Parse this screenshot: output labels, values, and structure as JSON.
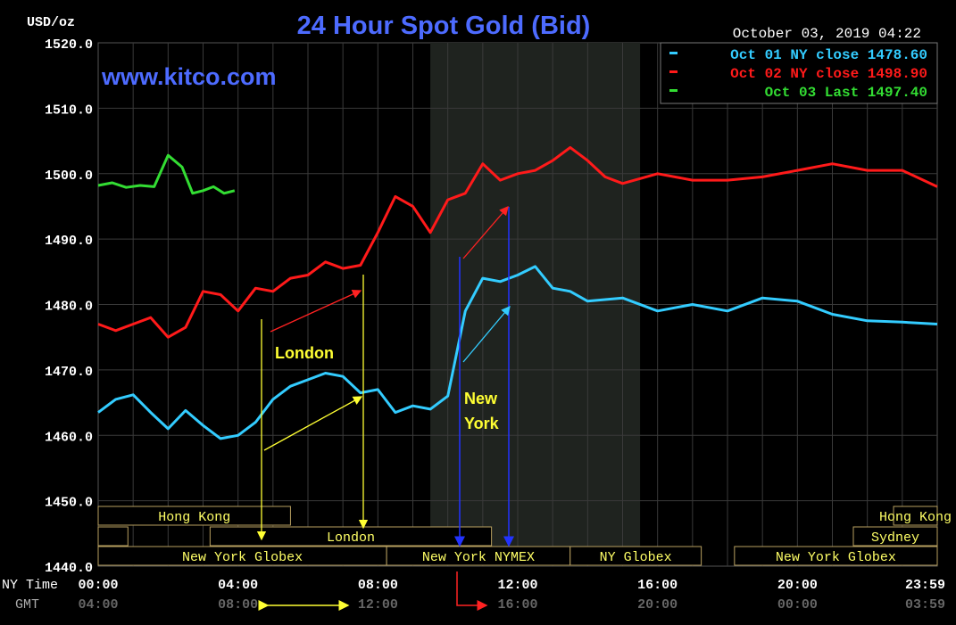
{
  "chart_data": {
    "type": "line",
    "title": "24 Hour Spot Gold (Bid)",
    "ylabel": "USD/oz",
    "watermark": "www.kitco.com",
    "timestamp": "October 03, 2019 04:22",
    "ylim": [
      1440,
      1520
    ],
    "yticks": [
      "1520.0",
      "1510.0",
      "1500.0",
      "1490.0",
      "1480.0",
      "1470.0",
      "1460.0",
      "1450.0",
      "1440.0"
    ],
    "xlim": [
      0,
      24
    ],
    "x_row_labels": [
      "NY Time",
      "GMT"
    ],
    "ny_ticks": [
      "00:00",
      "04:00",
      "08:00",
      "12:00",
      "16:00",
      "20:00",
      "23:59"
    ],
    "gmt_ticks": [
      "04:00",
      "08:00",
      "12:00",
      "16:00",
      "20:00",
      "00:00",
      "03:59"
    ],
    "grid": true,
    "colors": {
      "background": "#000000",
      "grid": "#3a3a3a",
      "shaded": "#1f231f",
      "title": "#4d6bff",
      "watermark": "#4d6bff",
      "axis_text": "#ffffff",
      "gmt_text": "#666666",
      "session_border": "#b8a060",
      "session_text": "#ffff66",
      "annotation": "#ffff33"
    },
    "shaded_region": [
      9.5,
      15.5
    ],
    "legend": [
      {
        "label": "Oct 01 NY close 1478.60",
        "color": "#33ccff"
      },
      {
        "label": "Oct 02 NY close 1498.90",
        "color": "#ff1a1a"
      },
      {
        "label": "Oct 03 Last 1497.40",
        "color": "#33dd33"
      }
    ],
    "series": [
      {
        "name": "Oct 01",
        "color": "#33ccff",
        "x": [
          0,
          0.5,
          1.0,
          1.5,
          2.0,
          2.5,
          3.0,
          3.5,
          4.0,
          4.5,
          5.0,
          5.5,
          6.0,
          6.5,
          7.0,
          7.5,
          8.0,
          8.5,
          9.0,
          9.5,
          10.0,
          10.5,
          11.0,
          11.5,
          12.0,
          12.5,
          13.0,
          13.5,
          14.0,
          15.0,
          16.0,
          17.0,
          18.0,
          19.0,
          20.0,
          21.0,
          22.0,
          23.0,
          24.0
        ],
        "values": [
          1463.5,
          1465.5,
          1466.2,
          1463.5,
          1461.0,
          1463.8,
          1461.5,
          1459.5,
          1460.0,
          1462.0,
          1465.5,
          1467.5,
          1468.5,
          1469.5,
          1469.0,
          1466.5,
          1467.0,
          1463.5,
          1464.5,
          1464.0,
          1466.0,
          1479.0,
          1484.0,
          1483.5,
          1484.5,
          1485.8,
          1482.5,
          1482.0,
          1480.5,
          1481.0,
          1479.0,
          1480.0,
          1479.0,
          1481.0,
          1480.5,
          1478.5,
          1477.5,
          1477.3,
          1477.0
        ]
      },
      {
        "name": "Oct 02",
        "color": "#ff1a1a",
        "x": [
          0,
          0.5,
          1.0,
          1.5,
          2.0,
          2.5,
          3.0,
          3.5,
          4.0,
          4.5,
          5.0,
          5.5,
          6.0,
          6.5,
          7.0,
          7.5,
          8.0,
          8.5,
          9.0,
          9.5,
          10.0,
          10.5,
          11.0,
          11.5,
          12.0,
          12.5,
          13.0,
          13.5,
          14.0,
          14.5,
          15.0,
          16.0,
          17.0,
          18.0,
          19.0,
          20.0,
          21.0,
          22.0,
          23.0,
          24.0
        ],
        "values": [
          1477.0,
          1476.0,
          1477.0,
          1478.0,
          1475.0,
          1476.5,
          1482.0,
          1481.5,
          1479.0,
          1482.5,
          1482.0,
          1484.0,
          1484.5,
          1486.5,
          1485.5,
          1486.0,
          1491.0,
          1496.5,
          1495.0,
          1491.0,
          1496.0,
          1497.0,
          1501.5,
          1499.0,
          1500.0,
          1500.5,
          1502.0,
          1504.0,
          1502.0,
          1499.5,
          1498.5,
          1500.0,
          1499.0,
          1499.0,
          1499.5,
          1500.5,
          1501.5,
          1500.5,
          1500.5,
          1498.0
        ]
      },
      {
        "name": "Oct 03",
        "color": "#33dd33",
        "x": [
          0,
          0.4,
          0.8,
          1.2,
          1.6,
          2.0,
          2.4,
          2.7,
          3.0,
          3.3,
          3.6,
          3.9
        ],
        "values": [
          1498.2,
          1498.6,
          1497.9,
          1498.2,
          1498.0,
          1502.8,
          1501.0,
          1497.0,
          1497.4,
          1498.0,
          1497.0,
          1497.4
        ]
      }
    ],
    "sessions": [
      {
        "label": "Hong Kong",
        "row": 0,
        "start": 0,
        "end": 5.5
      },
      {
        "label": "Hong Kong",
        "row": 0,
        "start": 22.75,
        "end": 24
      },
      {
        "label": "",
        "row": 1,
        "start": 0,
        "end": 0.85
      },
      {
        "label": "London",
        "row": 1,
        "start": 3.2,
        "end": 11.25
      },
      {
        "label": "Sydney",
        "row": 1,
        "start": 21.6,
        "end": 24
      },
      {
        "label": "New York Globex",
        "row": 2,
        "start": 0,
        "end": 8.25
      },
      {
        "label": "New York NYMEX",
        "row": 2,
        "start": 8.25,
        "end": 13.5
      },
      {
        "label": "NY Globex",
        "row": 2,
        "start": 13.5,
        "end": 17.25
      },
      {
        "label": "New York Globex",
        "row": 2,
        "start": 18.2,
        "end": 24
      }
    ],
    "annotations": [
      {
        "text": "London",
        "color": "#ffff33"
      },
      {
        "text": "New",
        "color": "#ffff33"
      },
      {
        "text": "York",
        "color": "#ffff33"
      }
    ]
  }
}
